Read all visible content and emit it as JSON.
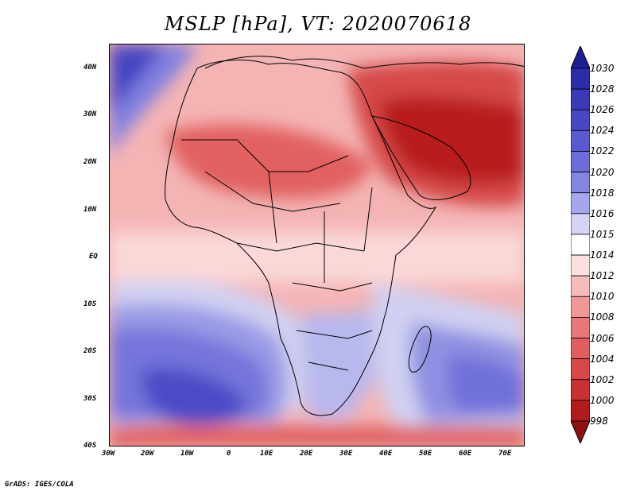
{
  "title": "MSLP [hPa], VT: 2020070618",
  "credit": "GrADS: IGES/COLA",
  "map": {
    "projection": "lat-lon",
    "variable": "mean sea level pressure",
    "units": "hPa",
    "lon_range": [
      -30,
      76
    ],
    "lat_range": [
      -40,
      45
    ],
    "lat_ticks": [
      {
        "value": 40,
        "label": "40N"
      },
      {
        "value": 30,
        "label": "30N"
      },
      {
        "value": 20,
        "label": "20N"
      },
      {
        "value": 10,
        "label": "10N"
      },
      {
        "value": 0,
        "label": "EQ"
      },
      {
        "value": -10,
        "label": "10S"
      },
      {
        "value": -20,
        "label": "20S"
      },
      {
        "value": -30,
        "label": "30S"
      },
      {
        "value": -40,
        "label": "40S"
      }
    ],
    "lon_ticks": [
      {
        "value": -30,
        "label": "30W"
      },
      {
        "value": -20,
        "label": "20W"
      },
      {
        "value": -10,
        "label": "10W"
      },
      {
        "value": 0,
        "label": "0"
      },
      {
        "value": 10,
        "label": "10E"
      },
      {
        "value": 20,
        "label": "20E"
      },
      {
        "value": 30,
        "label": "30E"
      },
      {
        "value": 40,
        "label": "40E"
      },
      {
        "value": 50,
        "label": "50E"
      },
      {
        "value": 60,
        "label": "60E"
      },
      {
        "value": 70,
        "label": "70E"
      }
    ]
  },
  "colorbar": {
    "levels": [
      "1030",
      "1028",
      "1026",
      "1024",
      "1022",
      "1020",
      "1018",
      "1016",
      "1015",
      "1014",
      "1012",
      "1010",
      "1008",
      "1006",
      "1004",
      "1002",
      "1000",
      "998"
    ],
    "colors": [
      "#1e1e96",
      "#2c2ca8",
      "#3a3ab8",
      "#4848c4",
      "#5a5ad0",
      "#6c6cda",
      "#8484e2",
      "#a6a6ec",
      "#d4d4f6",
      "#ffffff",
      "#fbe0e0",
      "#f6bcbc",
      "#ee9898",
      "#e87878",
      "#e05e5e",
      "#d64848",
      "#c83232",
      "#b01c1c",
      "#901010"
    ]
  }
}
